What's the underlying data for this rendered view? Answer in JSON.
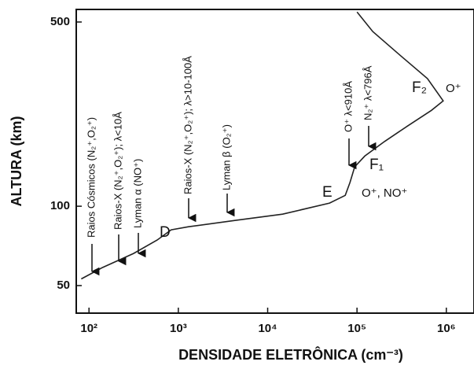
{
  "chart_data": {
    "type": "line",
    "xlabel": "DENSIDADE ELETRÔNICA (cm⁻³)",
    "ylabel": "ALTURA (km)",
    "xscale": "log",
    "yscale": "log",
    "xlim": [
      72,
      2040000
    ],
    "ylim": [
      39.3,
      558
    ],
    "xticks": [
      {
        "value": 100,
        "label": "10²"
      },
      {
        "value": 1000,
        "label": "10³"
      },
      {
        "value": 10000,
        "label": "10⁴"
      },
      {
        "value": 100000,
        "label": "10⁵"
      },
      {
        "value": 1000000,
        "label": "10⁶"
      }
    ],
    "yticks": [
      50,
      100,
      500
    ],
    "series": [
      {
        "color": "#222",
        "x": [
          82,
          141,
          316,
          579,
          833,
          1300,
          4370,
          14700,
          49300,
          73800,
          83400,
          94100,
          122000,
          203000,
          372000,
          681000,
          922000,
          615000,
          303000,
          150000,
          100000
        ],
        "values": [
          53,
          58.5,
          66.2,
          74.4,
          81.4,
          83.6,
          88.4,
          93.3,
          102.8,
          110,
          123,
          141,
          155,
          176,
          202,
          231,
          251,
          305,
          374,
          460,
          546
        ]
      }
    ],
    "annotations": [
      "Raios Cósmicos (N₂⁺,O₂⁺)",
      "Raios-X (N₂⁺,O₂⁺); λ<10Å",
      "Lyman α (NO⁺)",
      "Raios-X (N₂⁺,O₂⁺); λ>10-100Å",
      "Lyman β (O₂⁺)",
      "O⁺ λ<910Å",
      "N₂⁺ λ<796Å"
    ],
    "regions": [
      "D",
      "E",
      "F₁",
      "F₂",
      "O⁺",
      "O⁺, NO⁺"
    ]
  }
}
